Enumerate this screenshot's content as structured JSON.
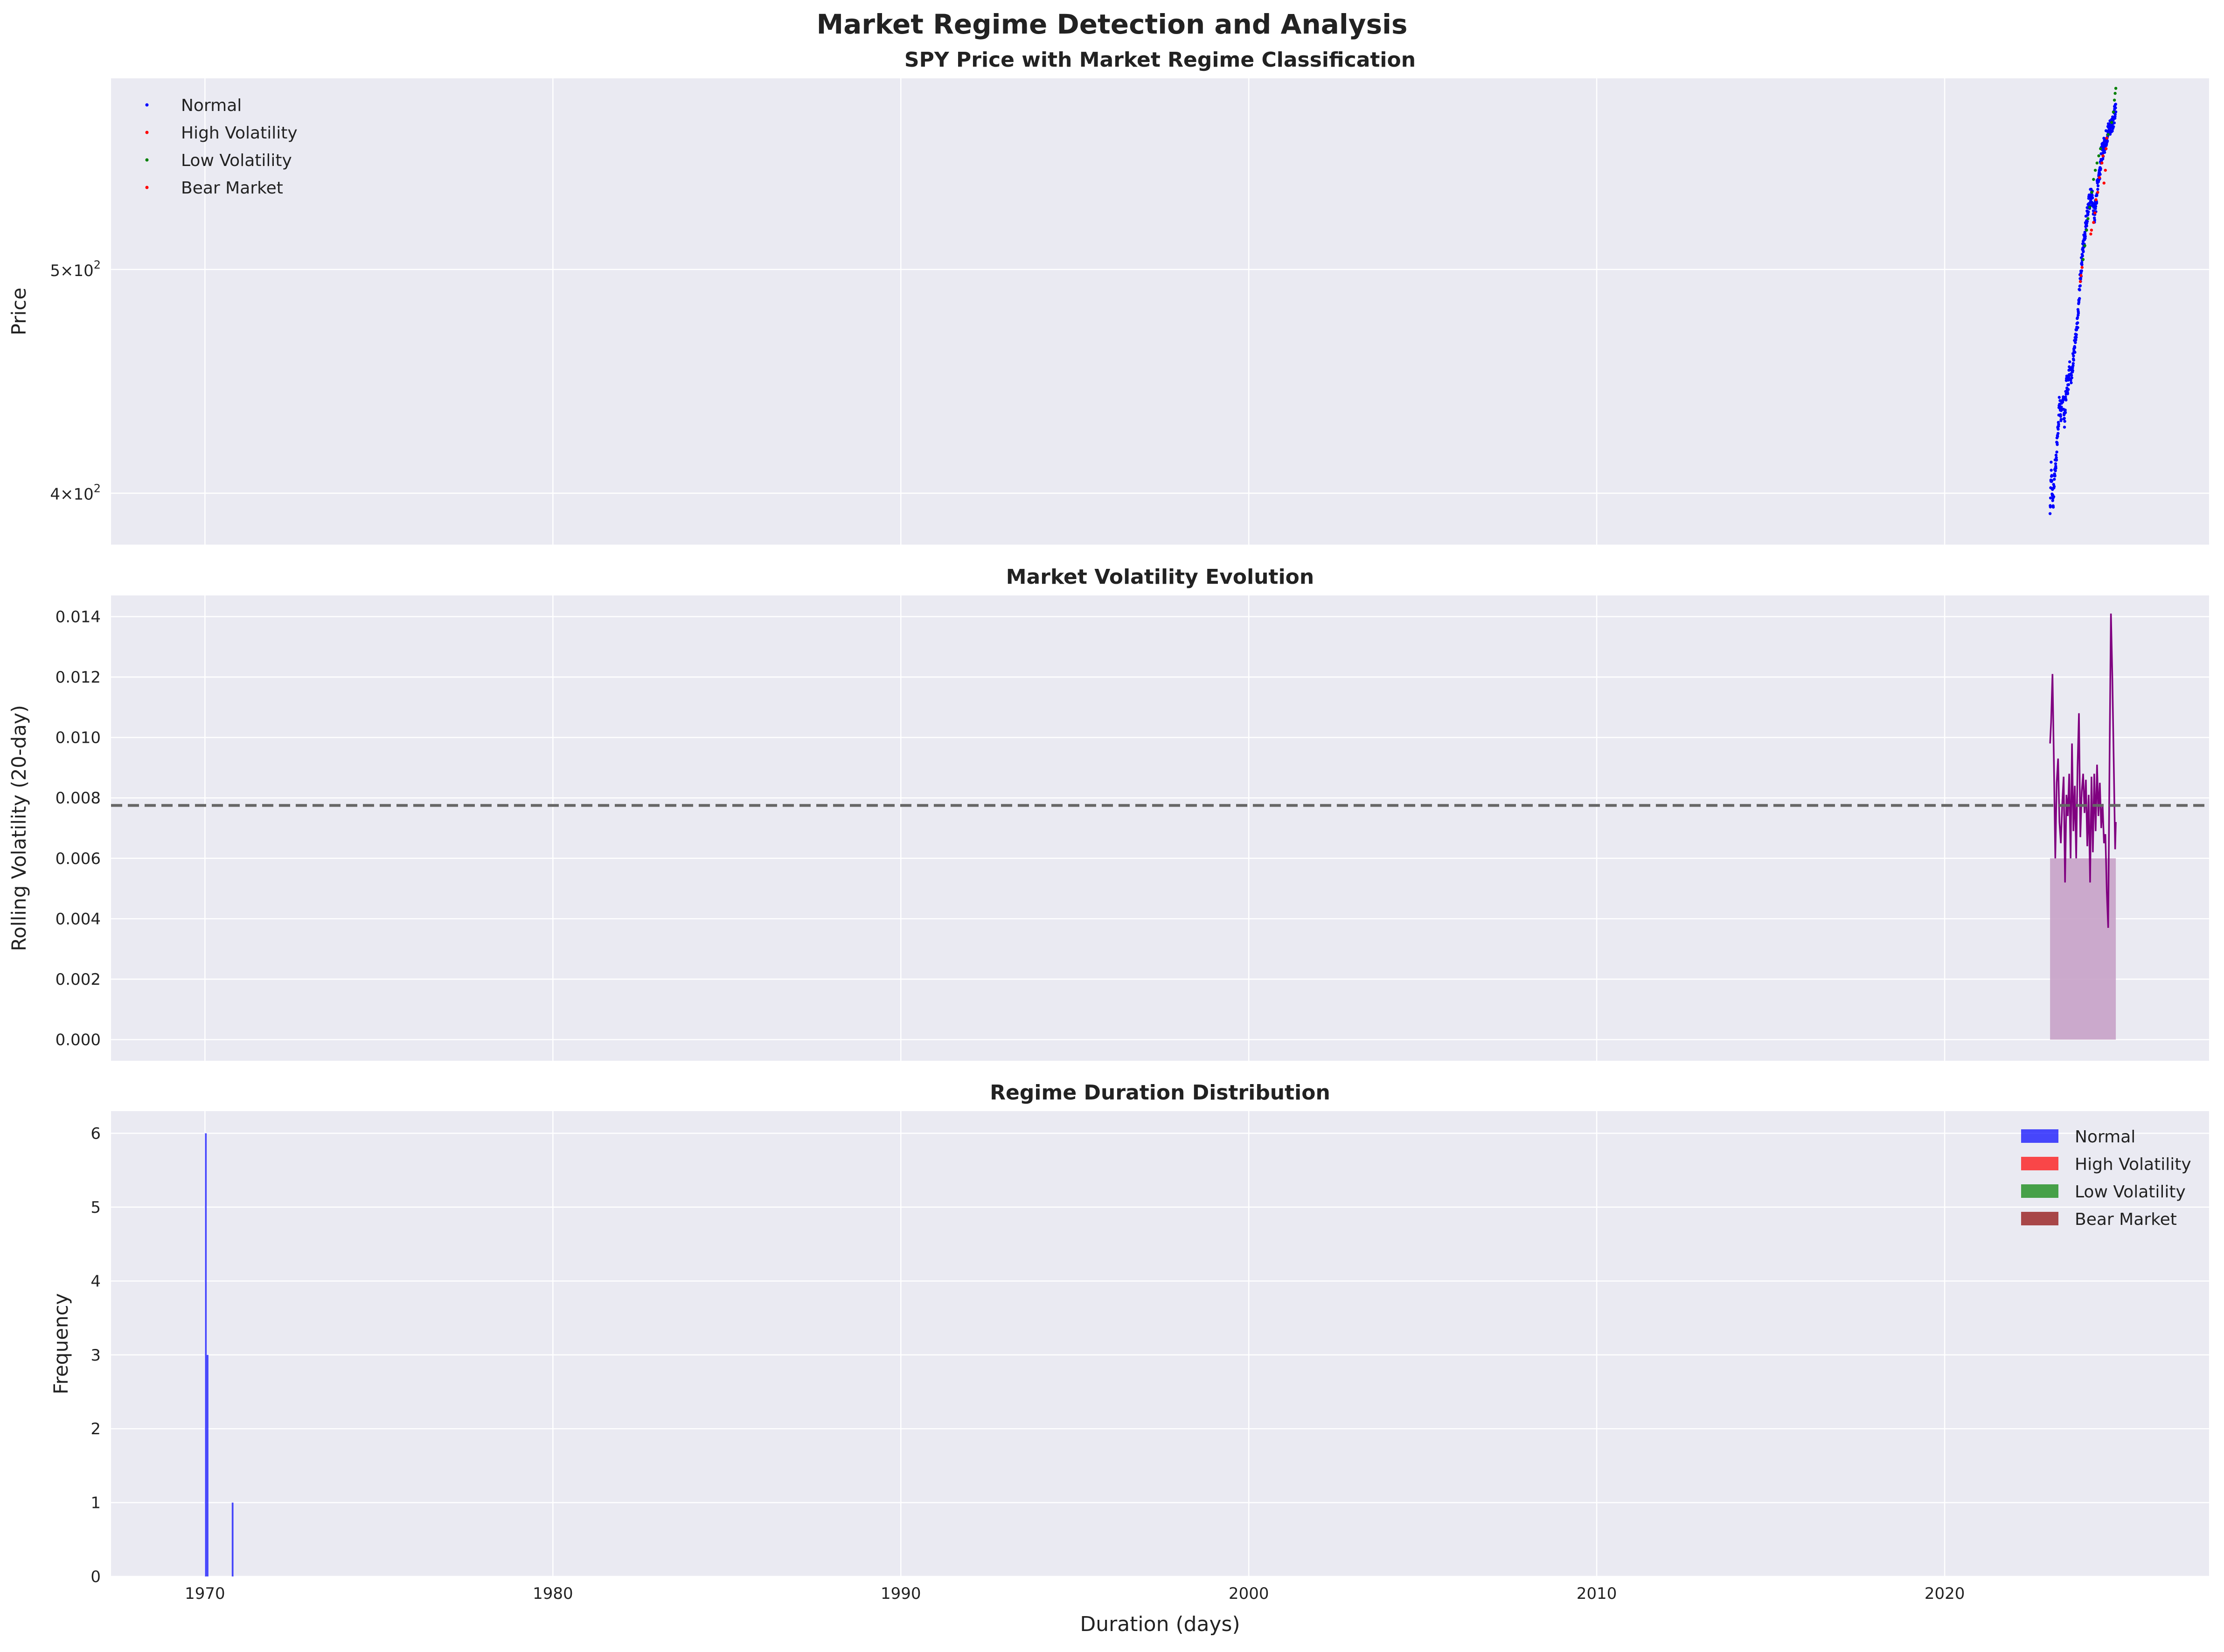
{
  "suptitle": "Market Regime Detection and Analysis",
  "colors": {
    "panel_bg": "#EAEAF2",
    "grid": "#ffffff",
    "normal": "#0000FF",
    "high_volatility": "#FF0000",
    "low_volatility": "#008000",
    "bear_market": "#8B0000",
    "volatility_line": "#800080",
    "volatility_fill": "#C8A2C8",
    "mean_line": "#666666"
  },
  "x_axis": {
    "label": "Duration (days)",
    "ticks": [
      "1970",
      "1980",
      "1990",
      "2000",
      "2010",
      "2020"
    ],
    "tick_values": [
      1970,
      1980,
      1990,
      2000,
      2010,
      2020
    ],
    "range": [
      1967.3,
      2027.6
    ]
  },
  "chart_data": [
    {
      "type": "scatter",
      "title": "SPY Price with Market Regime Classification",
      "ylabel": "Price",
      "yscale": "log",
      "ylim": [
        380,
        605
      ],
      "y_ticks": [
        {
          "value": 400,
          "base": "4×10",
          "exp": "2"
        },
        {
          "value": 500,
          "base": "5×10",
          "exp": "2"
        }
      ],
      "legend": {
        "placement": "upper-left",
        "entries": [
          "Normal",
          "High Volatility",
          "Low Volatility",
          "Bear Market"
        ]
      },
      "x_start": 2023.03,
      "x_end": 2024.92,
      "series": [
        {
          "name": "Normal",
          "color": "#0000FF",
          "anchors": [
            [
              2023.03,
              392
            ],
            [
              2023.06,
              410
            ],
            [
              2023.09,
              402
            ],
            [
              2023.12,
              397
            ],
            [
              2023.16,
              408
            ],
            [
              2023.2,
              413
            ],
            [
              2023.25,
              425
            ],
            [
              2023.3,
              438
            ],
            [
              2023.35,
              432
            ],
            [
              2023.4,
              441
            ],
            [
              2023.45,
              429
            ],
            [
              2023.5,
              447
            ],
            [
              2023.55,
              445
            ],
            [
              2023.58,
              455
            ],
            [
              2023.62,
              451
            ],
            [
              2023.66,
              450
            ],
            [
              2023.7,
              460
            ],
            [
              2023.75,
              464
            ],
            [
              2023.8,
              470
            ],
            [
              2023.84,
              478
            ],
            [
              2023.88,
              491
            ],
            [
              2023.92,
              500
            ],
            [
              2023.96,
              508
            ],
            [
              2024.0,
              514
            ],
            [
              2024.05,
              522
            ],
            [
              2024.1,
              529
            ],
            [
              2024.15,
              534
            ],
            [
              2024.2,
              538
            ],
            [
              2024.25,
              536
            ],
            [
              2024.3,
              527
            ],
            [
              2024.35,
              534
            ],
            [
              2024.4,
              546
            ],
            [
              2024.45,
              551
            ],
            [
              2024.5,
              560
            ],
            [
              2024.6,
              567
            ],
            [
              2024.7,
              574
            ],
            [
              2024.8,
              578
            ],
            [
              2024.92,
              586
            ]
          ]
        },
        {
          "name": "High Volatility",
          "color": "#FF0000",
          "points": [
            [
              2023.9,
              494
            ],
            [
              2023.92,
              497
            ],
            [
              2023.95,
              501
            ],
            [
              2024.2,
              518
            ],
            [
              2024.22,
              520
            ],
            [
              2024.28,
              524
            ],
            [
              2024.32,
              529
            ],
            [
              2024.35,
              536
            ],
            [
              2024.4,
              540
            ],
            [
              2024.45,
              548
            ],
            [
              2024.52,
              556
            ],
            [
              2024.55,
              560
            ],
            [
              2024.58,
              545
            ],
            [
              2024.62,
              552
            ],
            [
              2024.64,
              564
            ],
            [
              2024.66,
              570
            ]
          ]
        },
        {
          "name": "Low Volatility",
          "color": "#008000",
          "points": [
            [
              2023.98,
              505
            ],
            [
              2024.03,
              512
            ],
            [
              2024.08,
              520
            ],
            [
              2024.12,
              526
            ],
            [
              2024.17,
              532
            ],
            [
              2024.23,
              540
            ],
            [
              2024.28,
              547
            ],
            [
              2024.33,
              552
            ],
            [
              2024.38,
              556
            ],
            [
              2024.43,
              560
            ],
            [
              2024.48,
              564
            ],
            [
              2024.7,
              572
            ],
            [
              2024.8,
              579
            ],
            [
              2024.85,
              585
            ],
            [
              2024.88,
              592
            ],
            [
              2024.9,
              596
            ],
            [
              2024.92,
              599
            ]
          ]
        },
        {
          "name": "Bear Market",
          "color": "#8B0000",
          "points": []
        }
      ]
    },
    {
      "type": "area",
      "title": "Market Volatility Evolution",
      "ylabel": "Rolling Volatility (20-day)",
      "ylim": [
        -0.0007,
        0.0147
      ],
      "y_ticks": [
        "0.000",
        "0.002",
        "0.004",
        "0.006",
        "0.008",
        "0.010",
        "0.012",
        "0.014"
      ],
      "y_tick_values": [
        0,
        0.002,
        0.004,
        0.006,
        0.008,
        0.01,
        0.012,
        0.014
      ],
      "mean_line": 0.00775,
      "fill_floor": 0.006,
      "series": [
        {
          "name": "",
          "color": "#800080",
          "x": [
            2023.03,
            2023.06,
            2023.1,
            2023.14,
            2023.18,
            2023.22,
            2023.26,
            2023.3,
            2023.34,
            2023.38,
            2023.42,
            2023.46,
            2023.5,
            2023.54,
            2023.58,
            2023.62,
            2023.66,
            2023.7,
            2023.74,
            2023.78,
            2023.82,
            2023.86,
            2023.9,
            2023.94,
            2023.98,
            2024.02,
            2024.06,
            2024.1,
            2024.14,
            2024.18,
            2024.22,
            2024.26,
            2024.3,
            2024.34,
            2024.38,
            2024.42,
            2024.46,
            2024.5,
            2024.54,
            2024.58,
            2024.62,
            2024.66,
            2024.7,
            2024.74,
            2024.78,
            2024.82,
            2024.86,
            2024.9,
            2024.92
          ],
          "y": [
            0.0098,
            0.0105,
            0.0121,
            0.0092,
            0.006,
            0.0085,
            0.0093,
            0.0072,
            0.0065,
            0.0078,
            0.0087,
            0.0052,
            0.0081,
            0.0074,
            0.0088,
            0.006,
            0.0098,
            0.0069,
            0.0084,
            0.006,
            0.009,
            0.0108,
            0.0067,
            0.0082,
            0.0088,
            0.0075,
            0.0086,
            0.0064,
            0.0081,
            0.0052,
            0.0087,
            0.0062,
            0.0088,
            0.0069,
            0.0091,
            0.0074,
            0.0085,
            0.007,
            0.0078,
            0.0065,
            0.0068,
            0.0049,
            0.0037,
            0.0094,
            0.0141,
            0.012,
            0.0092,
            0.0063,
            0.0072
          ]
        }
      ]
    },
    {
      "type": "bar",
      "title": "Regime Duration Distribution",
      "ylabel": "Frequency",
      "ylim": [
        0,
        6.3
      ],
      "y_ticks": [
        "0",
        "1",
        "2",
        "3",
        "4",
        "5",
        "6"
      ],
      "y_tick_values": [
        0,
        1,
        2,
        3,
        4,
        5,
        6
      ],
      "legend": {
        "placement": "upper-right",
        "entries": [
          "Normal",
          "High Volatility",
          "Low Volatility",
          "Bear Market"
        ],
        "alpha": 0.7
      },
      "series": [
        {
          "name": "Normal",
          "color": "#0000FF",
          "bars": [
            {
              "x0": 1970.0,
              "x1": 1970.05,
              "value": 6
            },
            {
              "x0": 1970.05,
              "x1": 1970.1,
              "value": 3
            },
            {
              "x0": 1970.77,
              "x1": 1970.82,
              "value": 1
            }
          ]
        },
        {
          "name": "High Volatility",
          "color": "#FF0000",
          "bars": []
        },
        {
          "name": "Low Volatility",
          "color": "#008000",
          "bars": []
        },
        {
          "name": "Bear Market",
          "color": "#8B0000",
          "bars": []
        }
      ]
    }
  ]
}
